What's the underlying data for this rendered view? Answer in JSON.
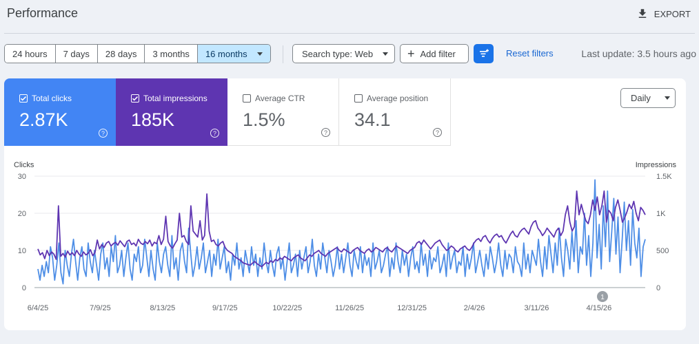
{
  "header": {
    "title": "Performance",
    "export_label": "EXPORT"
  },
  "toolbar": {
    "ranges": [
      "24 hours",
      "7 days",
      "28 days",
      "3 months",
      "16 months"
    ],
    "search_type": "Search type: Web",
    "add_filter": "Add filter",
    "reset_filters": "Reset filters",
    "last_update": "Last update: 3.5 hours ago"
  },
  "metrics": {
    "clicks": {
      "label": "Total clicks",
      "value": "2.87K",
      "color": "#4285f4"
    },
    "impressions": {
      "label": "Total impressions",
      "value": "185K",
      "color": "#5e35b1"
    },
    "ctr": {
      "label": "Average CTR",
      "value": "1.5%"
    },
    "position": {
      "label": "Average position",
      "value": "34.1"
    }
  },
  "granularity": "Daily",
  "chart_data": {
    "type": "line",
    "xlabel": "",
    "ylabel_left": "Clicks",
    "ylabel_right": "Impressions",
    "y_left_ticks": [
      "30",
      "20",
      "10",
      "0"
    ],
    "y_right_ticks": [
      "1.5K",
      "1K",
      "500",
      "0"
    ],
    "ylim_left": [
      0,
      30
    ],
    "ylim_right": [
      0,
      1500
    ],
    "x_ticks": [
      "6/4/25",
      "7/9/25",
      "8/13/25",
      "9/17/25",
      "10/22/25",
      "11/26/25",
      "12/31/25",
      "2/4/26",
      "3/11/26",
      "4/15/26"
    ],
    "annotation": "1",
    "annotation_x": 0.93,
    "series": [
      {
        "name": "Total clicks",
        "axis": "left",
        "color": "#4e8ee6",
        "values": [
          5,
          2,
          6,
          3,
          7,
          4,
          11,
          8,
          2,
          6,
          12,
          4,
          1,
          10,
          6,
          3,
          9,
          13,
          7,
          2,
          8,
          11,
          5,
          3,
          12,
          7,
          4,
          10,
          6,
          2,
          9,
          12,
          5,
          8,
          3,
          11,
          7,
          14,
          4,
          6,
          10,
          3,
          8,
          12,
          5,
          2,
          9,
          7,
          11,
          4,
          6,
          13,
          8,
          3,
          10,
          5,
          2,
          12,
          7,
          4,
          9,
          11,
          6,
          3,
          14,
          5,
          8,
          2,
          10,
          12,
          7,
          4,
          16,
          9,
          3,
          6,
          11,
          5,
          8,
          12,
          4,
          7,
          10,
          3,
          9,
          6,
          13,
          5,
          8,
          11,
          4,
          7,
          2,
          9,
          6,
          12,
          5,
          8,
          3,
          10,
          7,
          4,
          11,
          6,
          9,
          3,
          8,
          5,
          12,
          7,
          4,
          10,
          6,
          3,
          9,
          11,
          5,
          8,
          2,
          7,
          12,
          4,
          6,
          9,
          3,
          10,
          5,
          8,
          11,
          4,
          7,
          13,
          6,
          3,
          9,
          5,
          12,
          8,
          4,
          10,
          7,
          3,
          6,
          11,
          5,
          9,
          4,
          8,
          12,
          6,
          3,
          10,
          7,
          5,
          11,
          4,
          9,
          6,
          8,
          3,
          12,
          5,
          7,
          10,
          4,
          6,
          9,
          11,
          3,
          8,
          5,
          12,
          7,
          4,
          10,
          6,
          9,
          3,
          8,
          11,
          5,
          7,
          4,
          12,
          6,
          9,
          3,
          10,
          5,
          8,
          7,
          11,
          4,
          6,
          9,
          3,
          12,
          5,
          8,
          10,
          4,
          7,
          6,
          11,
          3,
          9,
          5,
          8,
          12,
          4,
          7,
          10,
          6,
          3,
          9,
          5,
          11,
          8,
          4,
          7,
          12,
          6,
          3,
          10,
          5,
          9,
          8,
          4,
          11,
          7,
          6,
          3,
          12,
          5,
          9,
          4,
          10,
          8,
          6,
          13,
          7,
          3,
          11,
          5,
          14,
          9,
          4,
          12,
          6,
          16,
          8,
          3,
          13,
          10,
          5,
          15,
          7,
          18,
          4,
          11,
          9,
          20,
          6,
          14,
          3,
          12,
          29,
          8,
          17,
          5,
          22,
          11,
          26,
          7,
          15,
          24,
          9,
          19,
          4,
          13,
          23,
          10,
          18,
          6,
          21,
          12,
          8,
          16,
          3,
          11,
          13
        ]
      },
      {
        "name": "Total impressions",
        "axis": "right",
        "color": "#5e35b1",
        "values": [
          520,
          440,
          470,
          390,
          500,
          430,
          480,
          450,
          380,
          1100,
          420,
          460,
          410,
          490,
          440,
          470,
          430,
          500,
          450,
          420,
          480,
          440,
          460,
          510,
          430,
          470,
          640,
          520,
          580,
          540,
          600,
          620,
          560,
          590,
          610,
          570,
          630,
          590,
          550,
          620,
          640,
          580,
          600,
          560,
          650,
          600,
          580,
          620,
          590,
          640,
          560,
          610,
          590,
          700,
          580,
          650,
          960,
          620,
          560,
          530,
          590,
          640,
          1000,
          680,
          700,
          620,
          580,
          1100,
          760,
          720,
          680,
          900,
          640,
          700,
          1260,
          760,
          620,
          640,
          580,
          560,
          600,
          620,
          540,
          500,
          480,
          460,
          420,
          400,
          380,
          360,
          330,
          320,
          310,
          300,
          330,
          350,
          320,
          300,
          280,
          310,
          340,
          320,
          360,
          340,
          380,
          360,
          400,
          380,
          420,
          400,
          380,
          360,
          400,
          420,
          440,
          400,
          380,
          360,
          400,
          440,
          420,
          460,
          480,
          500,
          460,
          440,
          420,
          460,
          480,
          500,
          520,
          540,
          500,
          480,
          520,
          500,
          480,
          460,
          500,
          520,
          540,
          500,
          480,
          460,
          500,
          520,
          480,
          500,
          540,
          520,
          500,
          480,
          520,
          540,
          500,
          480,
          520,
          560,
          540,
          520,
          500,
          480,
          460,
          500,
          520,
          540,
          600,
          620,
          580,
          640,
          600,
          560,
          520,
          560,
          600,
          620,
          640,
          580,
          540,
          500,
          520,
          560,
          540,
          500,
          480,
          520,
          540,
          560,
          520,
          500,
          540,
          600,
          640,
          660,
          620,
          680,
          700,
          640,
          600,
          660,
          700,
          720,
          680,
          700,
          640,
          600,
          660,
          720,
          760,
          700,
          680,
          740,
          780,
          800,
          760,
          720,
          820,
          880,
          900,
          800,
          760,
          700,
          740,
          800,
          760,
          720,
          680,
          760,
          800,
          700,
          760,
          980,
          1100,
          880,
          760,
          820,
          1300,
          980,
          1120,
          1000,
          900,
          860,
          980,
          1180,
          1040,
          1220,
          980,
          1100,
          1300,
          880,
          1040,
          1000,
          900,
          1080,
          1180,
          1040,
          880,
          940,
          1020,
          1120,
          1060,
          1160,
          1000,
          900,
          1080,
          1040,
          980
        ]
      }
    ]
  }
}
